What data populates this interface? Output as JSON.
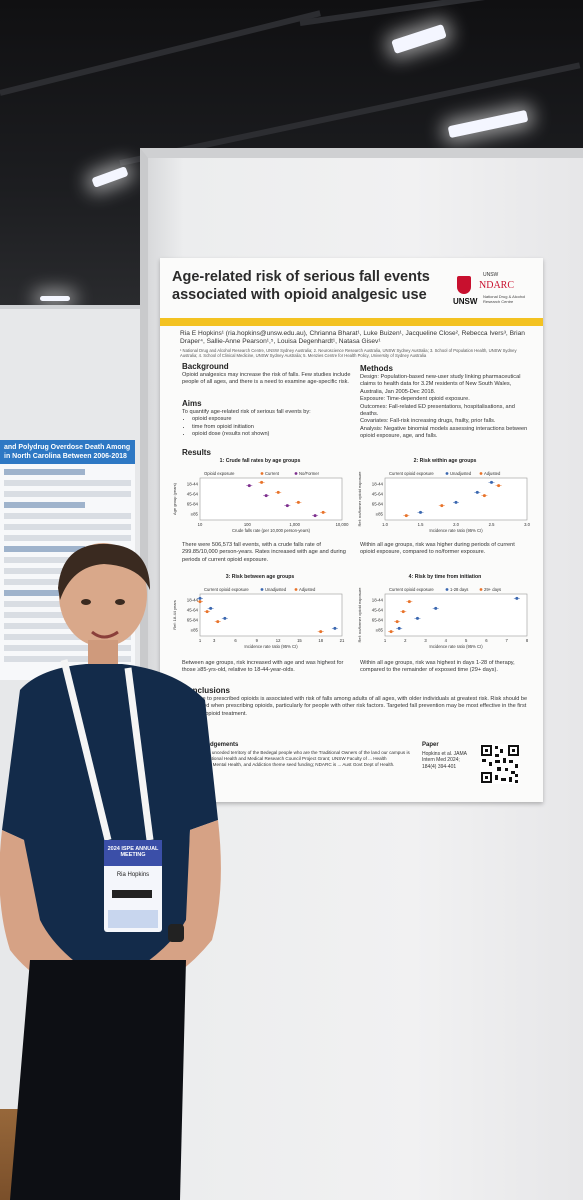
{
  "poster": {
    "title": "Age-related risk of serious fall events associated with opioid analgesic use",
    "logo": {
      "top": "UNSW",
      "ndarc": "NDARC",
      "subtitle": "National Drug & Alcohol Research Centre",
      "unsw": "UNSW"
    },
    "authors": "Ria E Hopkins¹ (ria.hopkins@unsw.edu.au), Chrianna Bharat¹, Luke Buizen¹, Jacqueline Close², Rebecca Ivers³, Brian Draper⁴, Sallie-Anne Pearson¹,⁵, Louisa Degenhardt¹, Natasa Gisev¹",
    "affiliations": "¹ National Drug and Alcohol Research Centre, UNSW Sydney Australia; 2. Neuroscience Research Australia, UNSW Sydney Australia; 3. School of Population Health, UNSW Sydney Australia; 4. School of Clinical Medicine, UNSW Sydney Australia; 5. Menzies Centre for Health Policy, University of Sydney Australia",
    "background": {
      "heading": "Background",
      "text": "Opioid analgesics may increase the risk of falls. Few studies include people of all ages, and there is a need to examine age-specific risk."
    },
    "aims": {
      "heading": "Aims",
      "text": "To quantify age-related risk of serious fall events by:",
      "items": [
        "opioid exposure",
        "time from opioid initiation",
        "opioid dose (results not shown)"
      ]
    },
    "methods": {
      "heading": "Methods",
      "design": "Design: Population-based new-user study linking pharmaceutical claims to health data for 3.2M residents of New South Wales, Australia, Jan 2005-Dec 2018.",
      "exposure": "Exposure: Time-dependent opioid exposure.",
      "outcomes": "Outcomes: Fall-related ED presentations, hospitalisations, and deaths.",
      "covariates": "Covariates: Fall-risk increasing drugs, frailty, prior falls.",
      "analysis": "Analysis: Negative binomial models assessing interactions between opioid exposure, age, and falls."
    },
    "results_heading": "Results",
    "result_text_1": "There were 506,573 fall events, with a crude falls rate of 299.85/10,000 person-years. Rates increased with age and during periods of current opioid exposure.",
    "result_text_2": "Within all age groups, risk was higher during periods of current opioid exposure, compared to no/former exposure.",
    "result_text_3": "Between age groups, risk increased with age and was highest for those ≥85-yrs-old, relative to 18-44-year-olds.",
    "result_text_4": "Within all age groups, risk was highest in days 1-28 of therapy, compared to the remainder of exposed time (29+ days).",
    "conclusions": {
      "heading": "Conclusions",
      "text": "Exposure to prescribed opioids is associated with risk of falls among adults of all ages, with older individuals at greatest risk. Risk should be considered when prescribing opioids, particularly for people with other risk factors. Targeted fall prevention may be most effective in the first month of opioid treatment."
    },
    "acknowledgements": {
      "heading": "Acknowledgements",
      "text": "Conducted on unceded territory of the Bedegal people who are the Traditional Owners of the land our campus is situated. ... National Health and Medical Research Council Project Grant; UNSW Faculty of ... Health Neuroscience, Mental Health, and Addiction theme seed funding; NDARC is ... Aust Govt Dept of Health."
    },
    "paper": {
      "heading": "Paper",
      "text": "Hopkins et al. JAMA Intern Med 2024; 184(4) 394-401"
    }
  },
  "colors": {
    "title_bar": "#f3c221",
    "shield": "#c8102e",
    "current": "#e8732a",
    "former": "#7d2f8e",
    "unadjusted": "#3a67b0",
    "adjusted": "#e8732a"
  },
  "chart_data": [
    {
      "type": "scatter",
      "title": "1: Crude fall rates by age groups",
      "xlabel": "Crude falls rate (per 10,000 person-years)",
      "ylabel": "Age group (years)",
      "x_scale": "log",
      "xlim": [
        10,
        10000
      ],
      "x_ticks": [
        "10",
        "100",
        "1,000",
        "10,000"
      ],
      "categories": [
        "18-44",
        "45-64",
        "65-84",
        "≥85"
      ],
      "legend_title": "Opioid exposure",
      "series": [
        {
          "name": "Current",
          "color": "#e8732a",
          "values": [
            200,
            450,
            1200,
            4000
          ]
        },
        {
          "name": "No/Former",
          "color": "#7d2f8e",
          "values": [
            110,
            250,
            700,
            2700
          ]
        }
      ]
    },
    {
      "type": "scatter",
      "title": "2: Risk within age groups",
      "xlabel": "Incidence rate ratio (95% CI)",
      "ylabel": "Ref: no/former opioid exposure",
      "xlim": [
        1.0,
        3.0
      ],
      "x_ticks": [
        "1.0",
        "1.5",
        "2.0",
        "2.5",
        "3.0"
      ],
      "categories": [
        "18-44",
        "45-64",
        "65-84",
        "≥85"
      ],
      "legend_title": "Current opioid exposure",
      "series": [
        {
          "name": "Unadjusted",
          "color": "#3a67b0",
          "values": [
            2.5,
            2.3,
            2.0,
            1.5
          ]
        },
        {
          "name": "Adjusted",
          "color": "#e8732a",
          "values": [
            2.6,
            2.4,
            1.8,
            1.3
          ]
        }
      ]
    },
    {
      "type": "scatter",
      "title": "3: Risk between age groups",
      "xlabel": "Incidence rate ratio (95% CI)",
      "ylabel": "Ref: 18-44 years",
      "xlim": [
        1,
        21
      ],
      "x_ticks": [
        "1",
        "3",
        "6",
        "9",
        "12",
        "15",
        "18",
        "21"
      ],
      "categories": [
        "18-44",
        "45-64",
        "65-84",
        "≥85"
      ],
      "legend_title": "Current opioid exposure",
      "series": [
        {
          "name": "Unadjusted",
          "color": "#3a67b0",
          "values": [
            1,
            2.5,
            4.5,
            20
          ]
        },
        {
          "name": "Adjusted",
          "color": "#e8732a",
          "values": [
            1,
            2.0,
            3.5,
            18
          ]
        }
      ]
    },
    {
      "type": "scatter",
      "title": "4: Risk by time from initiation",
      "xlabel": "Incidence rate ratio (95% CI)",
      "ylabel": "Ref: no/former opioid exposure",
      "xlim": [
        1,
        8
      ],
      "x_ticks": [
        "1",
        "2",
        "3",
        "4",
        "5",
        "6",
        "7",
        "8"
      ],
      "categories": [
        "18-44",
        "45-64",
        "65-84",
        "≥85"
      ],
      "legend_title": "Current opioid exposure",
      "series": [
        {
          "name": "1-28 days",
          "color": "#3a67b0",
          "values": [
            7.5,
            3.5,
            2.6,
            1.7
          ]
        },
        {
          "name": "29+ days",
          "color": "#e8732a",
          "values": [
            2.2,
            1.9,
            1.6,
            1.3
          ]
        }
      ]
    }
  ],
  "left_poster": {
    "title": "and Polydrug Overdose Death Among in North Carolina Between 2006-2018"
  },
  "lanyard": {
    "event": "2024 ISPE ANNUAL MEETING",
    "name": "Ria Hopkins"
  }
}
